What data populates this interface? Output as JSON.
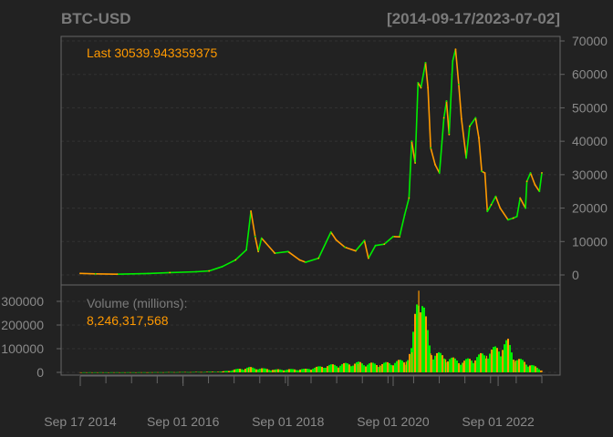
{
  "header": {
    "symbol": "BTC-USD",
    "date_range": "[2014-09-17/2023-07-02]"
  },
  "colors": {
    "background": "#222222",
    "panel_border": "#666666",
    "grid": "#333333",
    "axis_text": "#8a8a8a",
    "title_text": "#7b7b7b",
    "accent": "#ff9900",
    "up": "#00ee00",
    "down": "#ff9900"
  },
  "chart_data": [
    {
      "type": "line",
      "panel": "price",
      "annotation_label": "Last",
      "last_value": "30539.943359375",
      "ylim": [
        0,
        70000
      ],
      "y_ticks": [
        0,
        10000,
        20000,
        30000,
        40000,
        50000,
        60000,
        70000
      ],
      "y_tick_labels": [
        "0",
        "10000",
        "20000",
        "30000",
        "40000",
        "50000",
        "60000",
        "70000"
      ],
      "grid": true,
      "x": [
        "2014-09-17",
        "2015-01-01",
        "2015-06-01",
        "2016-01-01",
        "2016-06-01",
        "2016-12-01",
        "2017-03-01",
        "2017-06-01",
        "2017-09-01",
        "2017-11-15",
        "2017-12-17",
        "2018-01-15",
        "2018-02-06",
        "2018-03-01",
        "2018-06-01",
        "2018-09-01",
        "2018-11-20",
        "2019-01-01",
        "2019-04-01",
        "2019-06-26",
        "2019-08-01",
        "2019-10-01",
        "2019-12-15",
        "2020-02-14",
        "2020-03-13",
        "2020-05-01",
        "2020-07-01",
        "2020-09-01",
        "2020-10-15",
        "2020-11-20",
        "2020-12-20",
        "2021-01-08",
        "2021-02-01",
        "2021-02-21",
        "2021-03-13",
        "2021-04-14",
        "2021-05-01",
        "2021-05-20",
        "2021-06-20",
        "2021-07-20",
        "2021-08-20",
        "2021-09-07",
        "2021-09-25",
        "2021-10-20",
        "2021-11-09",
        "2021-12-01",
        "2021-12-20",
        "2022-01-22",
        "2022-02-15",
        "2022-03-28",
        "2022-04-20",
        "2022-05-10",
        "2022-06-01",
        "2022-06-18",
        "2022-07-15",
        "2022-08-15",
        "2022-09-15",
        "2022-11-09",
        "2022-12-15",
        "2023-01-10",
        "2023-02-01",
        "2023-03-10",
        "2023-03-20",
        "2023-04-14",
        "2023-05-15",
        "2023-06-15",
        "2023-07-02"
      ],
      "values": [
        457,
        315,
        230,
        430,
        700,
        950,
        1200,
        2500,
        4500,
        7500,
        19100,
        11500,
        7000,
        11000,
        6500,
        7000,
        4500,
        3800,
        5000,
        12800,
        10500,
        8300,
        7200,
        10300,
        5000,
        8800,
        9200,
        11500,
        11400,
        18000,
        23000,
        40000,
        33500,
        57500,
        56000,
        63500,
        56000,
        38000,
        33000,
        30500,
        47000,
        52000,
        42000,
        64000,
        67500,
        57000,
        46700,
        35000,
        44500,
        47000,
        41000,
        31000,
        30500,
        19000,
        21000,
        23500,
        20000,
        16500,
        17000,
        17500,
        23000,
        20000,
        28000,
        30500,
        27000,
        25000,
        30540
      ]
    },
    {
      "type": "bar",
      "panel": "volume",
      "label": "Volume (millions):",
      "last_value": "8,246,317,568",
      "ylim": [
        0,
        350000
      ],
      "y_ticks": [
        0,
        100000,
        200000,
        300000
      ],
      "y_tick_labels": [
        "0",
        "100000",
        "200000",
        "300000"
      ],
      "grid": true,
      "x": [
        "2014-09-17",
        "2016-01-01",
        "2017-01-01",
        "2017-06-01",
        "2017-12-01",
        "2018-06-01",
        "2019-01-01",
        "2019-06-01",
        "2020-01-01",
        "2020-06-01",
        "2020-12-01",
        "2021-01-10",
        "2021-02-26",
        "2021-05-19",
        "2021-09-01",
        "2022-01-01",
        "2022-06-13",
        "2022-11-09",
        "2023-01-01",
        "2023-03-01",
        "2023-07-02"
      ],
      "values": [
        300,
        500,
        1500,
        3000,
        18000,
        10000,
        12000,
        25000,
        35000,
        30000,
        45000,
        85000,
        345000,
        80000,
        55000,
        40000,
        70000,
        110000,
        50000,
        40000,
        8246
      ]
    }
  ],
  "x_axis": {
    "labels": [
      "Sep 17 2014",
      "Sep 01 2016",
      "Sep 01 2018",
      "Sep 01 2020",
      "Sep 01 2022"
    ],
    "dates": [
      "2014-09-17",
      "2016-09-01",
      "2018-09-01",
      "2020-09-01",
      "2022-09-01"
    ]
  }
}
